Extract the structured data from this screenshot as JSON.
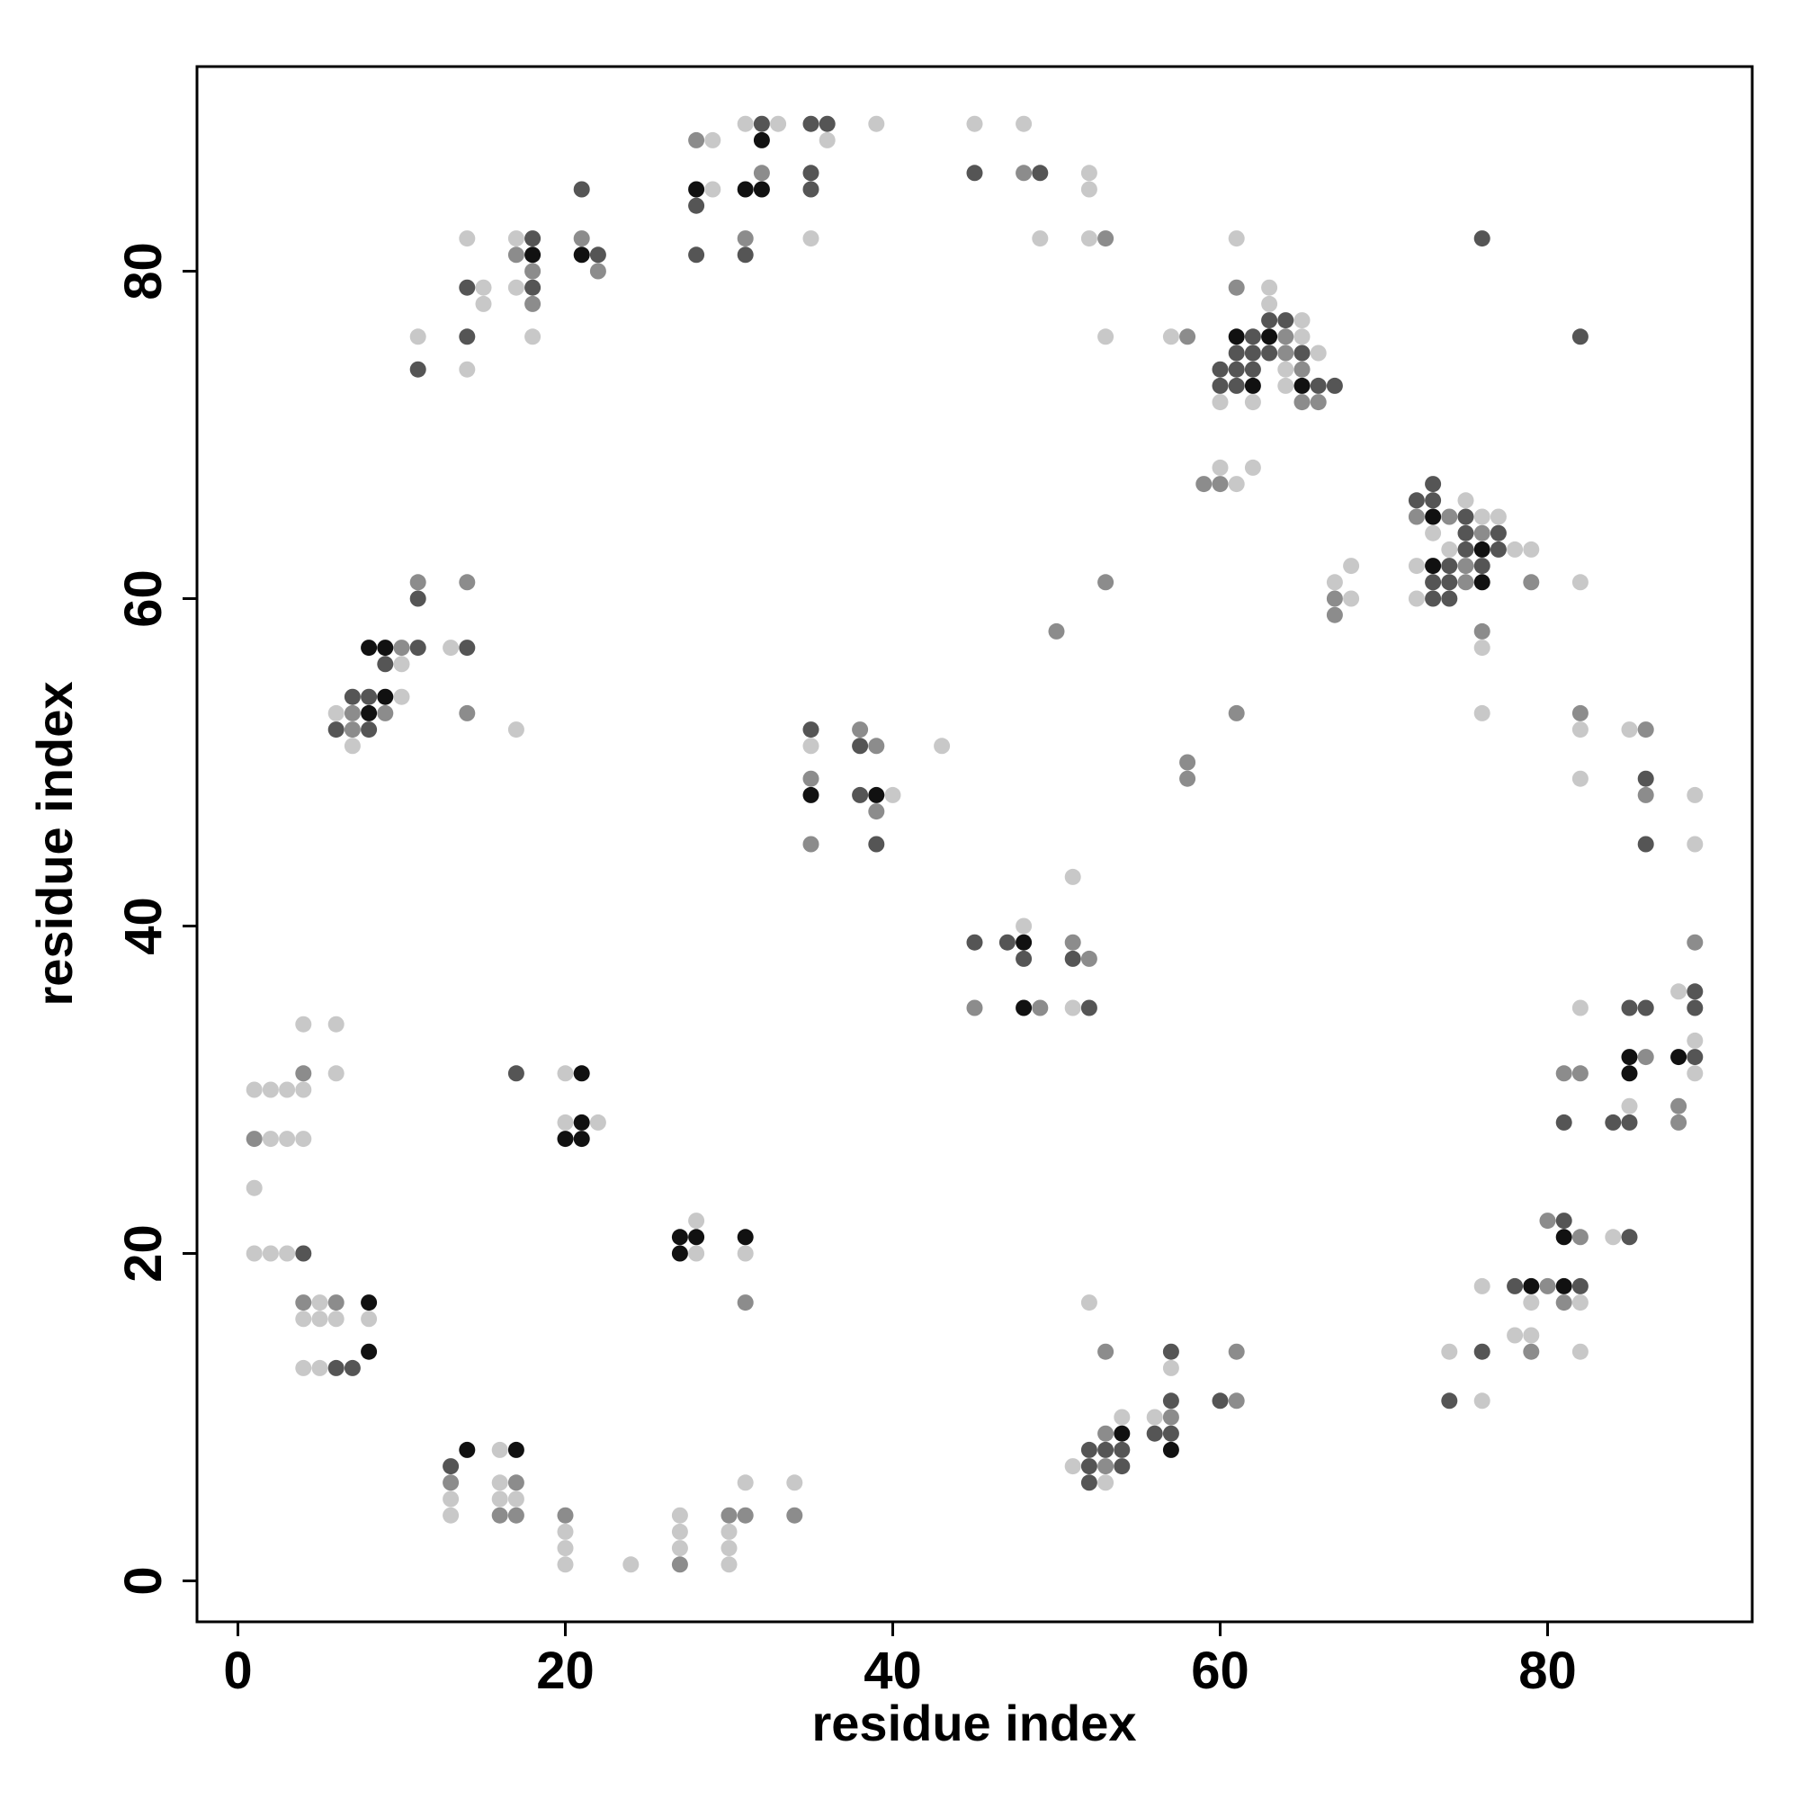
{
  "chart_data": {
    "type": "scatter",
    "xlabel": "residue index",
    "ylabel": "residue index",
    "xlim": [
      -2.5,
      92.5
    ],
    "ylim": [
      -2.5,
      92.5
    ],
    "xticks": [
      0,
      20,
      40,
      60,
      80
    ],
    "yticks": [
      0,
      20,
      40,
      60,
      80
    ],
    "series": [
      {
        "color": "#111111",
        "x": [
          32,
          28,
          31,
          32,
          18,
          21,
          61,
          63,
          62,
          65,
          73,
          76,
          73,
          76,
          8,
          9,
          9,
          8,
          35,
          39,
          48,
          48,
          85,
          88,
          21,
          85,
          21,
          20,
          21,
          27,
          28,
          31,
          81,
          27,
          79,
          81,
          8,
          8,
          54,
          14,
          17,
          57
        ],
        "values": [
          88,
          85,
          85,
          85,
          81,
          81,
          76,
          76,
          73,
          73,
          65,
          63,
          62,
          61,
          57,
          57,
          54,
          53,
          48,
          48,
          39,
          35,
          32,
          32,
          31,
          31,
          28,
          27,
          27,
          21,
          21,
          21,
          21,
          20,
          18,
          18,
          17,
          14,
          9,
          8,
          8,
          8
        ]
      },
      {
        "color": "#555555",
        "x": [
          32,
          35,
          36,
          35,
          45,
          49,
          35,
          21,
          28,
          18,
          76,
          22,
          28,
          31,
          14,
          18,
          63,
          64,
          14,
          82,
          62,
          61,
          62,
          63,
          65,
          11,
          60,
          61,
          62,
          60,
          61,
          66,
          67,
          73,
          72,
          73,
          75,
          75,
          77,
          75,
          77,
          74,
          76,
          73,
          74,
          11,
          73,
          74,
          11,
          14,
          9,
          7,
          8,
          6,
          8,
          35,
          38,
          86,
          38,
          39,
          86,
          45,
          47,
          48,
          51,
          89,
          52,
          85,
          86,
          89,
          89,
          17,
          81,
          84,
          85,
          81,
          85,
          4,
          78,
          82,
          57,
          76,
          6,
          7,
          57,
          60,
          74,
          56,
          57,
          52,
          53,
          54,
          13,
          52,
          54,
          52
        ],
        "values": [
          89,
          89,
          89,
          86,
          86,
          86,
          85,
          85,
          84,
          82,
          82,
          81,
          81,
          81,
          79,
          79,
          77,
          77,
          76,
          76,
          76,
          75,
          75,
          75,
          75,
          74,
          74,
          74,
          74,
          73,
          73,
          73,
          73,
          67,
          66,
          66,
          65,
          64,
          64,
          63,
          63,
          62,
          62,
          61,
          61,
          60,
          60,
          60,
          57,
          57,
          56,
          54,
          54,
          52,
          52,
          52,
          51,
          49,
          48,
          45,
          45,
          39,
          39,
          38,
          38,
          36,
          35,
          35,
          35,
          35,
          32,
          31,
          28,
          28,
          28,
          22,
          21,
          20,
          18,
          18,
          14,
          14,
          13,
          13,
          11,
          11,
          11,
          9,
          9,
          8,
          8,
          8,
          7,
          7,
          7,
          6
        ]
      },
      {
        "color": "#8c8c8c",
        "x": [
          28,
          32,
          48,
          21,
          31,
          53,
          17,
          18,
          22,
          61,
          18,
          58,
          64,
          64,
          65,
          65,
          66,
          59,
          60,
          72,
          74,
          76,
          75,
          11,
          14,
          53,
          75,
          79,
          67,
          67,
          50,
          76,
          10,
          7,
          9,
          14,
          61,
          82,
          7,
          38,
          86,
          39,
          58,
          35,
          58,
          86,
          39,
          35,
          51,
          89,
          52,
          45,
          49,
          86,
          4,
          81,
          82,
          88,
          88,
          1,
          80,
          82,
          80,
          4,
          6,
          31,
          81,
          53,
          61,
          79,
          61,
          57,
          53,
          53,
          13,
          17,
          16,
          17,
          20,
          30,
          31,
          34,
          27
        ],
        "values": [
          88,
          86,
          86,
          82,
          82,
          82,
          81,
          80,
          80,
          79,
          78,
          76,
          76,
          75,
          74,
          72,
          72,
          67,
          67,
          65,
          65,
          64,
          62,
          61,
          61,
          61,
          61,
          61,
          60,
          59,
          58,
          58,
          57,
          53,
          53,
          53,
          53,
          53,
          52,
          52,
          52,
          51,
          50,
          49,
          49,
          48,
          47,
          45,
          39,
          39,
          38,
          35,
          35,
          32,
          31,
          31,
          31,
          29,
          28,
          27,
          22,
          21,
          18,
          17,
          17,
          17,
          17,
          14,
          14,
          14,
          11,
          10,
          9,
          7,
          6,
          6,
          4,
          4,
          4,
          4,
          4,
          4,
          1
        ]
      },
      {
        "color": "#c8c8c8",
        "x": [
          31,
          33,
          39,
          45,
          48,
          29,
          36,
          52,
          29,
          52,
          14,
          17,
          35,
          49,
          52,
          61,
          15,
          17,
          63,
          15,
          63,
          65,
          11,
          18,
          53,
          57,
          65,
          66,
          14,
          64,
          64,
          60,
          62,
          60,
          62,
          61,
          75,
          76,
          77,
          73,
          74,
          78,
          79,
          72,
          68,
          67,
          82,
          68,
          72,
          13,
          76,
          10,
          10,
          6,
          76,
          17,
          82,
          85,
          7,
          35,
          43,
          82,
          40,
          89,
          89,
          51,
          48,
          88,
          51,
          82,
          4,
          6,
          89,
          20,
          6,
          89,
          1,
          2,
          3,
          4,
          85,
          20,
          22,
          2,
          3,
          4,
          1,
          28,
          84,
          1,
          2,
          3,
          28,
          31,
          76,
          5,
          52,
          79,
          82,
          4,
          5,
          6,
          8,
          78,
          79,
          74,
          82,
          4,
          5,
          57,
          76,
          54,
          56,
          16,
          51,
          16,
          31,
          34,
          53,
          13,
          16,
          17,
          13,
          27,
          20,
          27,
          30,
          20,
          27,
          30,
          20,
          24,
          30
        ],
        "values": [
          89,
          89,
          89,
          89,
          89,
          88,
          88,
          86,
          85,
          85,
          82,
          82,
          82,
          82,
          82,
          82,
          79,
          79,
          79,
          78,
          78,
          77,
          76,
          76,
          76,
          76,
          76,
          75,
          74,
          74,
          73,
          72,
          72,
          68,
          68,
          67,
          66,
          65,
          65,
          64,
          63,
          63,
          63,
          62,
          62,
          61,
          61,
          60,
          60,
          57,
          57,
          56,
          54,
          53,
          53,
          52,
          52,
          52,
          51,
          51,
          51,
          49,
          48,
          48,
          45,
          43,
          40,
          36,
          35,
          35,
          34,
          34,
          33,
          31,
          31,
          31,
          30,
          30,
          30,
          30,
          29,
          28,
          28,
          27,
          27,
          27,
          24,
          22,
          21,
          20,
          20,
          20,
          20,
          20,
          18,
          17,
          17,
          17,
          17,
          16,
          16,
          16,
          16,
          15,
          15,
          14,
          14,
          13,
          13,
          13,
          11,
          10,
          10,
          8,
          7,
          6,
          6,
          6,
          6,
          5,
          5,
          5,
          4,
          4,
          3,
          3,
          3,
          2,
          2,
          2,
          1,
          1,
          1
        ]
      }
    ]
  }
}
